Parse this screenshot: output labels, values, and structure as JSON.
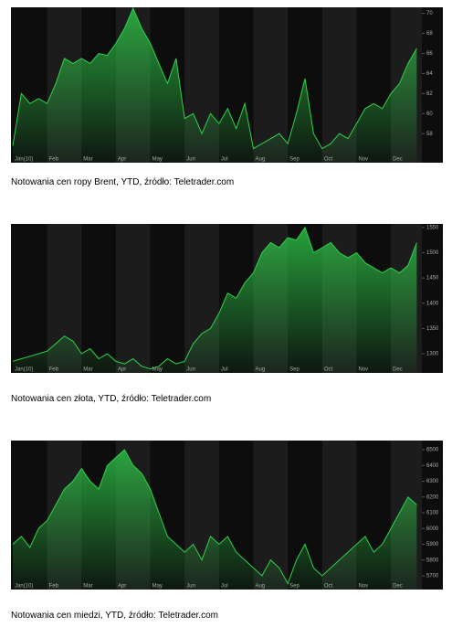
{
  "chart_data": [
    {
      "type": "area",
      "color": "#2fd14a",
      "caption": "Notowania cen ropy Brent, YTD, źródło: Teletrader.com",
      "x": [
        0,
        0.25,
        0.5,
        0.75,
        1,
        1.25,
        1.5,
        1.75,
        2,
        2.25,
        2.5,
        2.75,
        3,
        3.25,
        3.5,
        3.75,
        4,
        4.25,
        4.5,
        4.75,
        5,
        5.25,
        5.5,
        5.75,
        6,
        6.25,
        6.5,
        6.75,
        7,
        7.25,
        7.5,
        7.75,
        8,
        8.25,
        8.5,
        8.75,
        9,
        9.25,
        9.5,
        9.75,
        10,
        10.25,
        10.5,
        10.75,
        11,
        11.25,
        11.5,
        11.75
      ],
      "values": [
        56.8,
        62,
        61,
        61.5,
        61,
        63,
        65.5,
        65,
        65.5,
        65,
        66,
        65.8,
        67,
        68.5,
        70.5,
        68.5,
        67,
        65,
        63,
        65.5,
        59.5,
        60,
        58,
        60,
        59,
        60.5,
        58.5,
        61,
        56.5,
        57,
        57.5,
        58,
        57,
        60,
        63.5,
        58,
        56.5,
        57,
        58,
        57.5,
        59,
        60.5,
        61,
        60.5,
        62,
        63,
        65,
        66.5
      ],
      "xlim": [
        0,
        11.9
      ],
      "ylim": [
        55.1,
        70.6
      ],
      "yticks": [
        58,
        60,
        62,
        64,
        66,
        68,
        70
      ],
      "xticks": [
        {
          "value": 0,
          "label": "Jan(10)"
        },
        {
          "value": 1,
          "label": "Feb"
        },
        {
          "value": 2,
          "label": "Mar"
        },
        {
          "value": 3,
          "label": "Apr"
        },
        {
          "value": 4,
          "label": "May"
        },
        {
          "value": 5,
          "label": "Jun"
        },
        {
          "value": 6,
          "label": "Jul"
        },
        {
          "value": 7,
          "label": "Aug"
        },
        {
          "value": 8,
          "label": "Sep"
        },
        {
          "value": 9,
          "label": "Oct"
        },
        {
          "value": 10,
          "label": "Nov"
        },
        {
          "value": 11,
          "label": "Dec"
        }
      ]
    },
    {
      "type": "area",
      "color": "#2fd14a",
      "caption": "Notowania cen złota, YTD, źródło: Teletrader.com",
      "x": [
        0,
        0.25,
        0.5,
        0.75,
        1,
        1.25,
        1.5,
        1.75,
        2,
        2.25,
        2.5,
        2.75,
        3,
        3.25,
        3.5,
        3.75,
        4,
        4.25,
        4.5,
        4.75,
        5,
        5.25,
        5.5,
        5.75,
        6,
        6.25,
        6.5,
        6.75,
        7,
        7.25,
        7.5,
        7.75,
        8,
        8.25,
        8.5,
        8.75,
        9,
        9.25,
        9.5,
        9.75,
        10,
        10.25,
        10.5,
        10.75,
        11,
        11.25,
        11.5,
        11.75
      ],
      "values": [
        1285,
        1290,
        1295,
        1300,
        1305,
        1320,
        1335,
        1325,
        1300,
        1310,
        1290,
        1300,
        1285,
        1280,
        1290,
        1275,
        1270,
        1275,
        1290,
        1280,
        1285,
        1320,
        1340,
        1350,
        1380,
        1420,
        1410,
        1440,
        1460,
        1500,
        1520,
        1510,
        1530,
        1525,
        1550,
        1500,
        1510,
        1520,
        1500,
        1490,
        1500,
        1480,
        1470,
        1460,
        1470,
        1460,
        1475,
        1520
      ],
      "xlim": [
        0,
        11.9
      ],
      "ylim": [
        1262,
        1557
      ],
      "yticks": [
        1300,
        1350,
        1400,
        1450,
        1500,
        1550
      ],
      "xticks": [
        {
          "value": 0,
          "label": "Jan(10)"
        },
        {
          "value": 1,
          "label": "Feb"
        },
        {
          "value": 2,
          "label": "Mar"
        },
        {
          "value": 3,
          "label": "Apr"
        },
        {
          "value": 4,
          "label": "May"
        },
        {
          "value": 5,
          "label": "Jun"
        },
        {
          "value": 6,
          "label": "Jul"
        },
        {
          "value": 7,
          "label": "Aug"
        },
        {
          "value": 8,
          "label": "Sep"
        },
        {
          "value": 9,
          "label": "Oct"
        },
        {
          "value": 10,
          "label": "Nov"
        },
        {
          "value": 11,
          "label": "Dec"
        }
      ]
    },
    {
      "type": "area",
      "color": "#2fd14a",
      "caption": "Notowania cen miedzi, YTD, źródło: Teletrader.com",
      "x": [
        0,
        0.25,
        0.5,
        0.75,
        1,
        1.25,
        1.5,
        1.75,
        2,
        2.25,
        2.5,
        2.75,
        3,
        3.25,
        3.5,
        3.75,
        4,
        4.25,
        4.5,
        4.75,
        5,
        5.25,
        5.5,
        5.75,
        6,
        6.25,
        6.5,
        6.75,
        7,
        7.25,
        7.5,
        7.75,
        8,
        8.25,
        8.5,
        8.75,
        9,
        9.25,
        9.5,
        9.75,
        10,
        10.25,
        10.5,
        10.75,
        11,
        11.25,
        11.5,
        11.75
      ],
      "values": [
        5900,
        5950,
        5880,
        6000,
        6050,
        6150,
        6250,
        6300,
        6380,
        6300,
        6250,
        6400,
        6450,
        6500,
        6400,
        6350,
        6250,
        6100,
        5950,
        5900,
        5850,
        5900,
        5800,
        5950,
        5900,
        5950,
        5850,
        5800,
        5750,
        5700,
        5800,
        5750,
        5650,
        5800,
        5900,
        5750,
        5700,
        5750,
        5800,
        5850,
        5900,
        5950,
        5850,
        5900,
        6000,
        6100,
        6200,
        6150
      ],
      "xlim": [
        0,
        11.9
      ],
      "ylim": [
        5613,
        6558
      ],
      "yticks": [
        5700,
        5800,
        5900,
        6000,
        6100,
        6200,
        6300,
        6400,
        6500
      ],
      "xticks": [
        {
          "value": 0,
          "label": "Jan(10)"
        },
        {
          "value": 1,
          "label": "Feb"
        },
        {
          "value": 2,
          "label": "Mar"
        },
        {
          "value": 3,
          "label": "Apr"
        },
        {
          "value": 4,
          "label": "May"
        },
        {
          "value": 5,
          "label": "Jun"
        },
        {
          "value": 6,
          "label": "Jul"
        },
        {
          "value": 7,
          "label": "Aug"
        },
        {
          "value": 8,
          "label": "Sep"
        },
        {
          "value": 9,
          "label": "Oct"
        },
        {
          "value": 10,
          "label": "Nov"
        },
        {
          "value": 11,
          "label": "Dec"
        }
      ]
    }
  ]
}
